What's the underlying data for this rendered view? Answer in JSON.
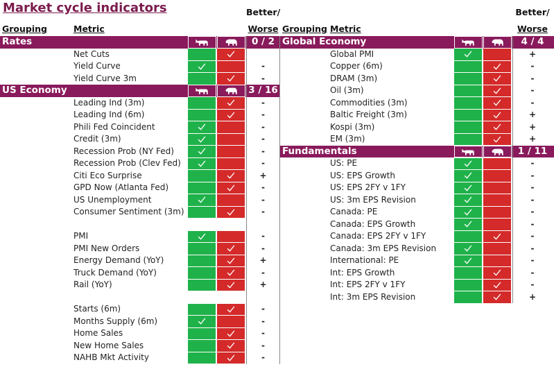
{
  "header": {
    "title": "Market cycle indicators",
    "left": {
      "better_worse_top": "Better/",
      "grouping": "Grouping",
      "metric": "Metric",
      "better_worse_bottom": "Worse"
    },
    "right": {
      "better_worse_top": "Better/",
      "grouping": "Grouping",
      "metric": "Metric",
      "better_worse_bottom": "Worse"
    }
  },
  "left": {
    "sections": [
      {
        "grouping": "Rates",
        "score": "0 / 2",
        "blocks": [
          [
            {
              "metric": "Net Cuts",
              "signal": "bear"
            },
            {
              "metric": "Yield Curve",
              "signal": "bull",
              "better_worse": "-"
            },
            {
              "metric": "Yield Curve 3m",
              "signal": "bear",
              "better_worse": "-"
            }
          ]
        ]
      },
      {
        "grouping": "US Economy",
        "score": "3 / 16",
        "blocks": [
          [
            {
              "metric": "Leading Ind (3m)",
              "signal": "bear",
              "better_worse": "-"
            },
            {
              "metric": "Leading Ind (6m)",
              "signal": "bear",
              "better_worse": "-"
            },
            {
              "metric": "Phili Fed Coincident",
              "signal": "bull",
              "better_worse": "-"
            },
            {
              "metric": "Credit (3m)",
              "signal": "bull",
              "better_worse": "-"
            },
            {
              "metric": "Recession Prob (NY Fed)",
              "signal": "bull",
              "better_worse": "-"
            },
            {
              "metric": "Recession Prob (Clev Fed)",
              "signal": "bull",
              "better_worse": "-"
            },
            {
              "metric": "Citi Eco Surprise",
              "signal": "bear",
              "better_worse": "+"
            },
            {
              "metric": "GPD Now (Atlanta Fed)",
              "signal": "bear",
              "better_worse": "-"
            },
            {
              "metric": "US Unemployment",
              "signal": "bull",
              "better_worse": "-"
            },
            {
              "metric": "Consumer Sentiment (3m)",
              "signal": "bear",
              "better_worse": "-"
            }
          ],
          [
            {
              "metric": "PMI",
              "signal": "bull",
              "better_worse": "-"
            },
            {
              "metric": "PMI New Orders",
              "signal": "bear",
              "better_worse": "-"
            },
            {
              "metric": "Energy Demand (YoY)",
              "signal": "bear",
              "better_worse": "+"
            },
            {
              "metric": "Truck Demand (YoY)",
              "signal": "bear",
              "better_worse": "-"
            },
            {
              "metric": "Rail (YoY)",
              "signal": "bear",
              "better_worse": "+"
            }
          ],
          [
            {
              "metric": "Starts (6m)",
              "signal": "bear",
              "better_worse": "-"
            },
            {
              "metric": "Months Supply (6m)",
              "signal": "bull",
              "better_worse": "-"
            },
            {
              "metric": "Home Sales",
              "signal": "bear",
              "better_worse": "-"
            },
            {
              "metric": "New Home Sales",
              "signal": "bear",
              "better_worse": "-"
            },
            {
              "metric": "NAHB Mkt Activity",
              "signal": "bear",
              "better_worse": "-"
            }
          ]
        ]
      }
    ]
  },
  "right": {
    "sections": [
      {
        "grouping": "Global Economy",
        "score": "4 / 4",
        "blocks": [
          [
            {
              "metric": "Global PMI",
              "signal": "bull",
              "better_worse": "+"
            },
            {
              "metric": "Copper (6m)",
              "signal": "bear",
              "better_worse": "-"
            },
            {
              "metric": "DRAM (3m)",
              "signal": "bear",
              "better_worse": "-"
            },
            {
              "metric": "Oil (3m)",
              "signal": "bear",
              "better_worse": "-"
            },
            {
              "metric": "Commodities (3m)",
              "signal": "bear",
              "better_worse": "-"
            },
            {
              "metric": "Baltic Freight (3m)",
              "signal": "bear",
              "better_worse": "+"
            },
            {
              "metric": "Kospi (3m)",
              "signal": "bear",
              "better_worse": "+"
            },
            {
              "metric": "EM (3m)",
              "signal": "bear",
              "better_worse": "+"
            }
          ]
        ]
      },
      {
        "grouping": "Fundamentals",
        "score": "1 / 11",
        "blocks": [
          [
            {
              "metric": "US: PE",
              "signal": "bull",
              "better_worse": "-"
            },
            {
              "metric": "US: EPS Growth",
              "signal": "bull",
              "better_worse": "-"
            },
            {
              "metric": "US: EPS 2FY v 1FY",
              "signal": "bull",
              "better_worse": "-"
            },
            {
              "metric": "US: 3m EPS Revision",
              "signal": "bull",
              "better_worse": "-"
            },
            {
              "metric": "Canada: PE",
              "signal": "bull",
              "better_worse": "-"
            },
            {
              "metric": "Canada: EPS Growth",
              "signal": "bull",
              "better_worse": "-"
            },
            {
              "metric": "Canada: EPS 2FY v 1FY",
              "signal": "bear",
              "better_worse": "-"
            },
            {
              "metric": "Canada: 3m EPS Revision",
              "signal": "bull",
              "better_worse": "-"
            },
            {
              "metric": "International: PE",
              "signal": "bull",
              "better_worse": "-"
            },
            {
              "metric": "Int: EPS Growth",
              "signal": "bear",
              "better_worse": "-"
            },
            {
              "metric": "Int: EPS 2FY v 1FY",
              "signal": "bear",
              "better_worse": "-"
            },
            {
              "metric": "Int: 3m EPS Revision",
              "signal": "bear",
              "better_worse": "+"
            }
          ]
        ]
      }
    ]
  }
}
